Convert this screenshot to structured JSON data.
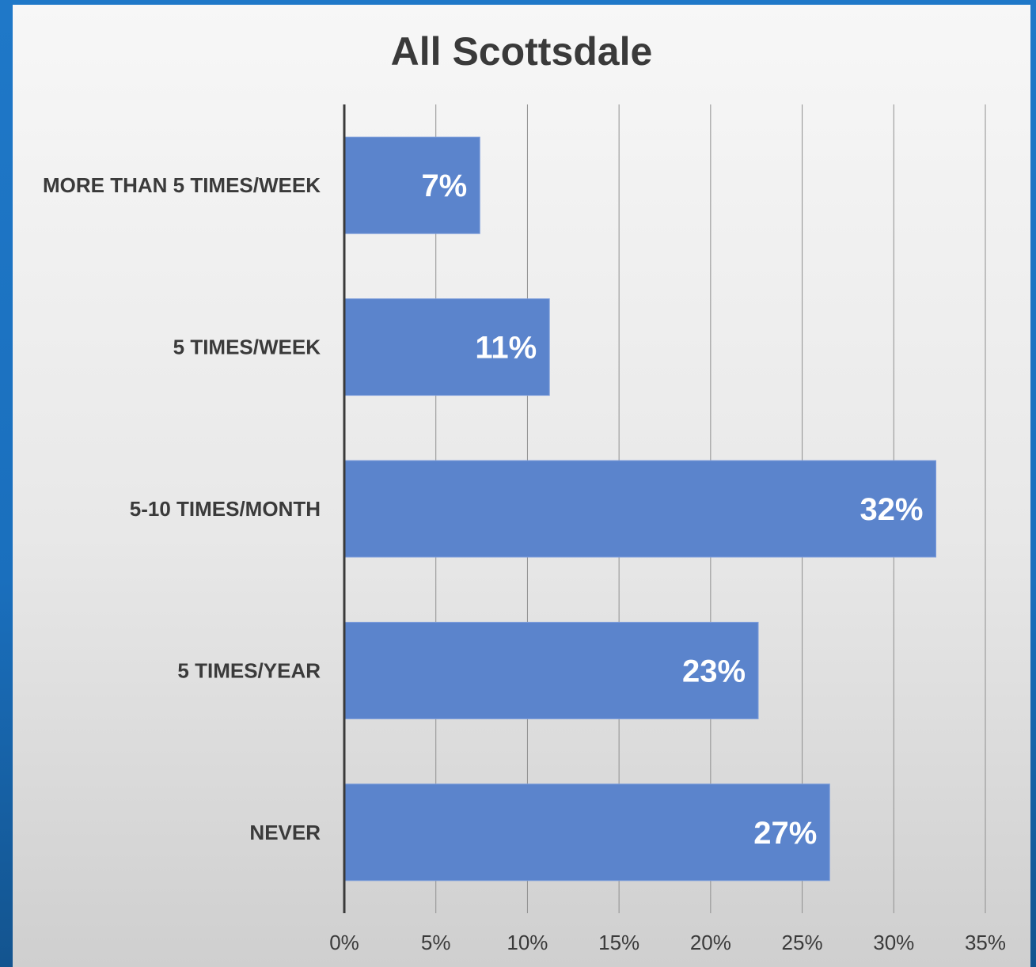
{
  "chart_data": {
    "type": "bar",
    "orientation": "horizontal",
    "title": "All Scottsdale",
    "categories": [
      "MORE THAN 5 TIMES/WEEK",
      "5 TIMES/WEEK",
      "5-10 TIMES/MONTH",
      "5 TIMES/YEAR",
      "NEVER"
    ],
    "values": [
      7.4,
      11.2,
      32.3,
      22.6,
      26.5
    ],
    "data_labels": [
      "7%",
      "11%",
      "32%",
      "23%",
      "27%"
    ],
    "xlim": [
      0,
      35
    ],
    "x_ticks": [
      0,
      5,
      10,
      15,
      20,
      25,
      30,
      35
    ],
    "x_tick_labels": [
      "0%",
      "5%",
      "10%",
      "15%",
      "20%",
      "25%",
      "30%",
      "35%"
    ],
    "xlabel": "",
    "ylabel": "",
    "grid": "vertical",
    "legend": "none",
    "colors": {
      "bar": "#5b84cc",
      "bar_border": "#7d9ddb",
      "grid": "#8f8f8f",
      "axis": "#3a3a3a",
      "category_text": "#3a3a3a",
      "tick_text": "#3a3a3a",
      "data_label": "#ffffff",
      "background_outer": "#1f78c8"
    }
  }
}
